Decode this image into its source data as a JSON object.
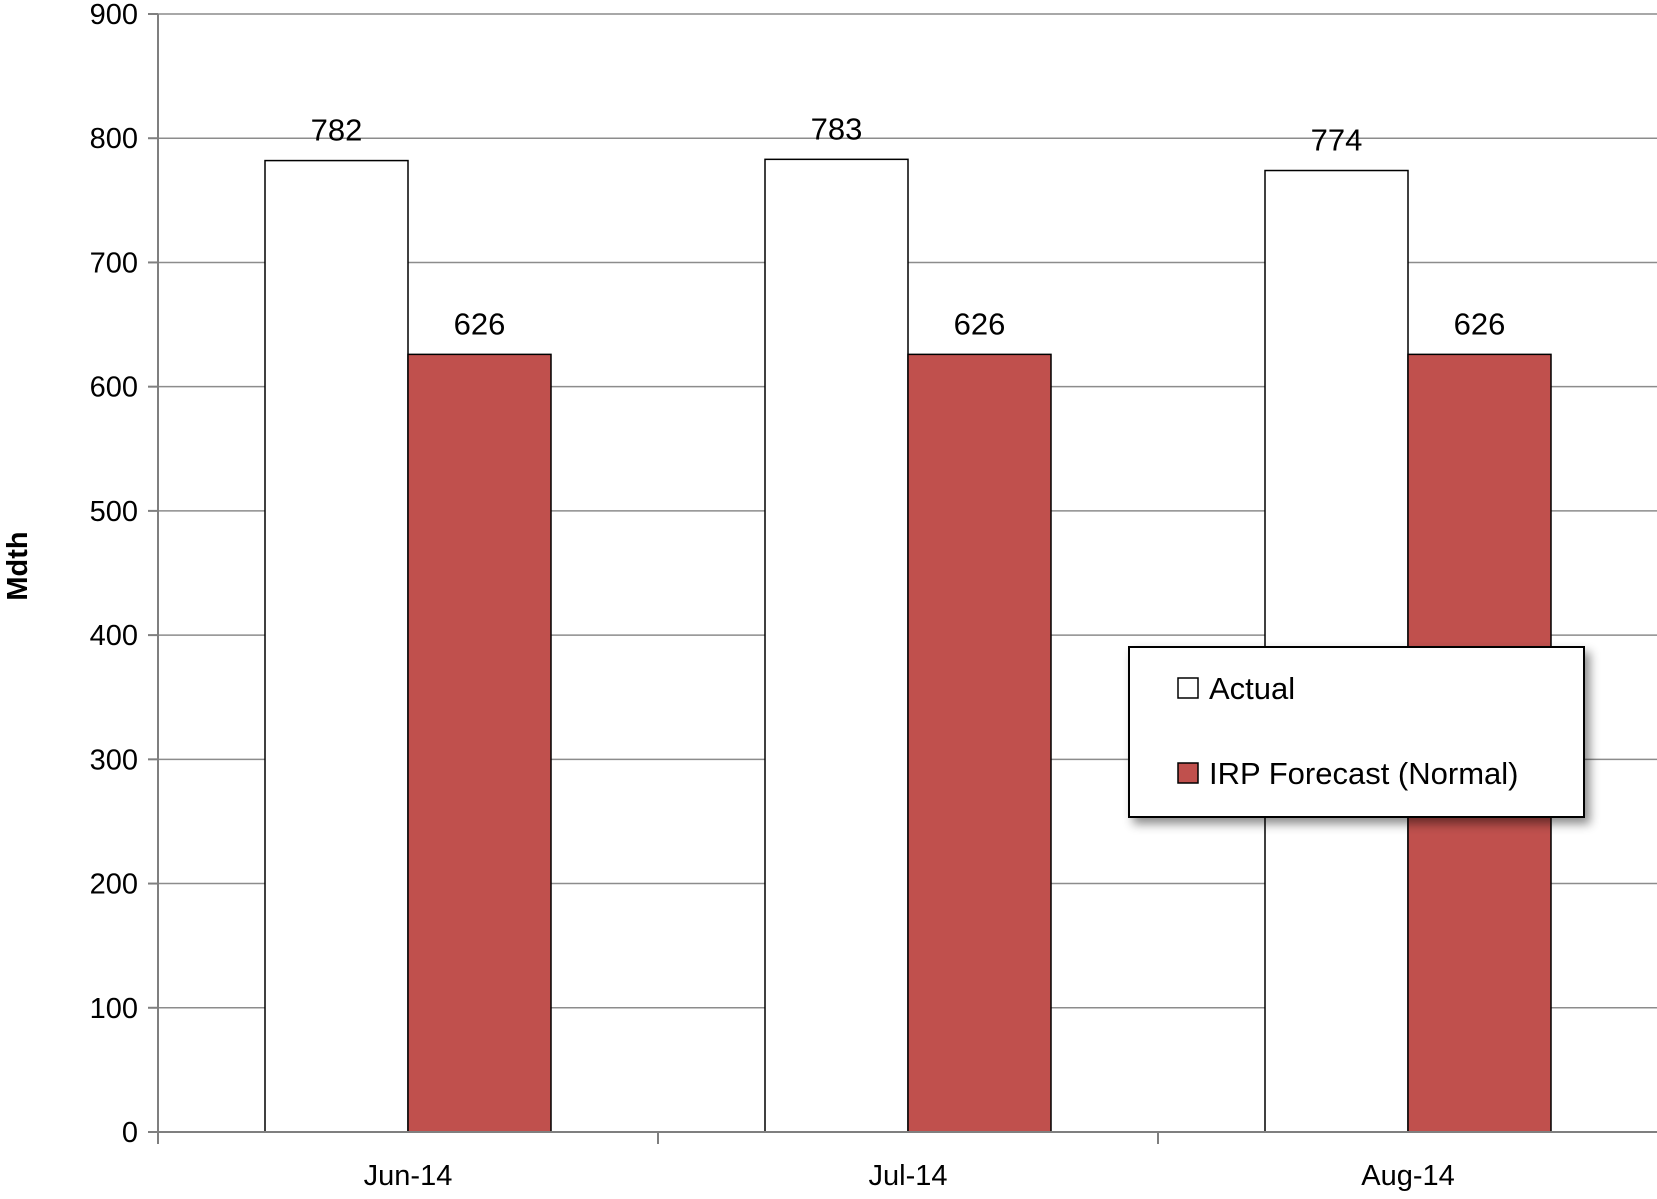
{
  "chart_data": {
    "type": "bar",
    "title": "",
    "xlabel": "",
    "ylabel": "Mdth",
    "ylim": [
      0,
      900
    ],
    "y_ticks": [
      0,
      100,
      200,
      300,
      400,
      500,
      600,
      700,
      800,
      900
    ],
    "grid": true,
    "legend_position": "right",
    "categories": [
      "Jun-14",
      "Jul-14",
      "Aug-14"
    ],
    "series": [
      {
        "name": "Actual",
        "values": [
          782,
          783,
          774
        ],
        "color": "#ffffff",
        "stroke": "#000000"
      },
      {
        "name": "IRP Forecast (Normal)",
        "values": [
          626,
          626,
          626
        ],
        "color": "#c0504d",
        "stroke": "#000000"
      }
    ]
  }
}
